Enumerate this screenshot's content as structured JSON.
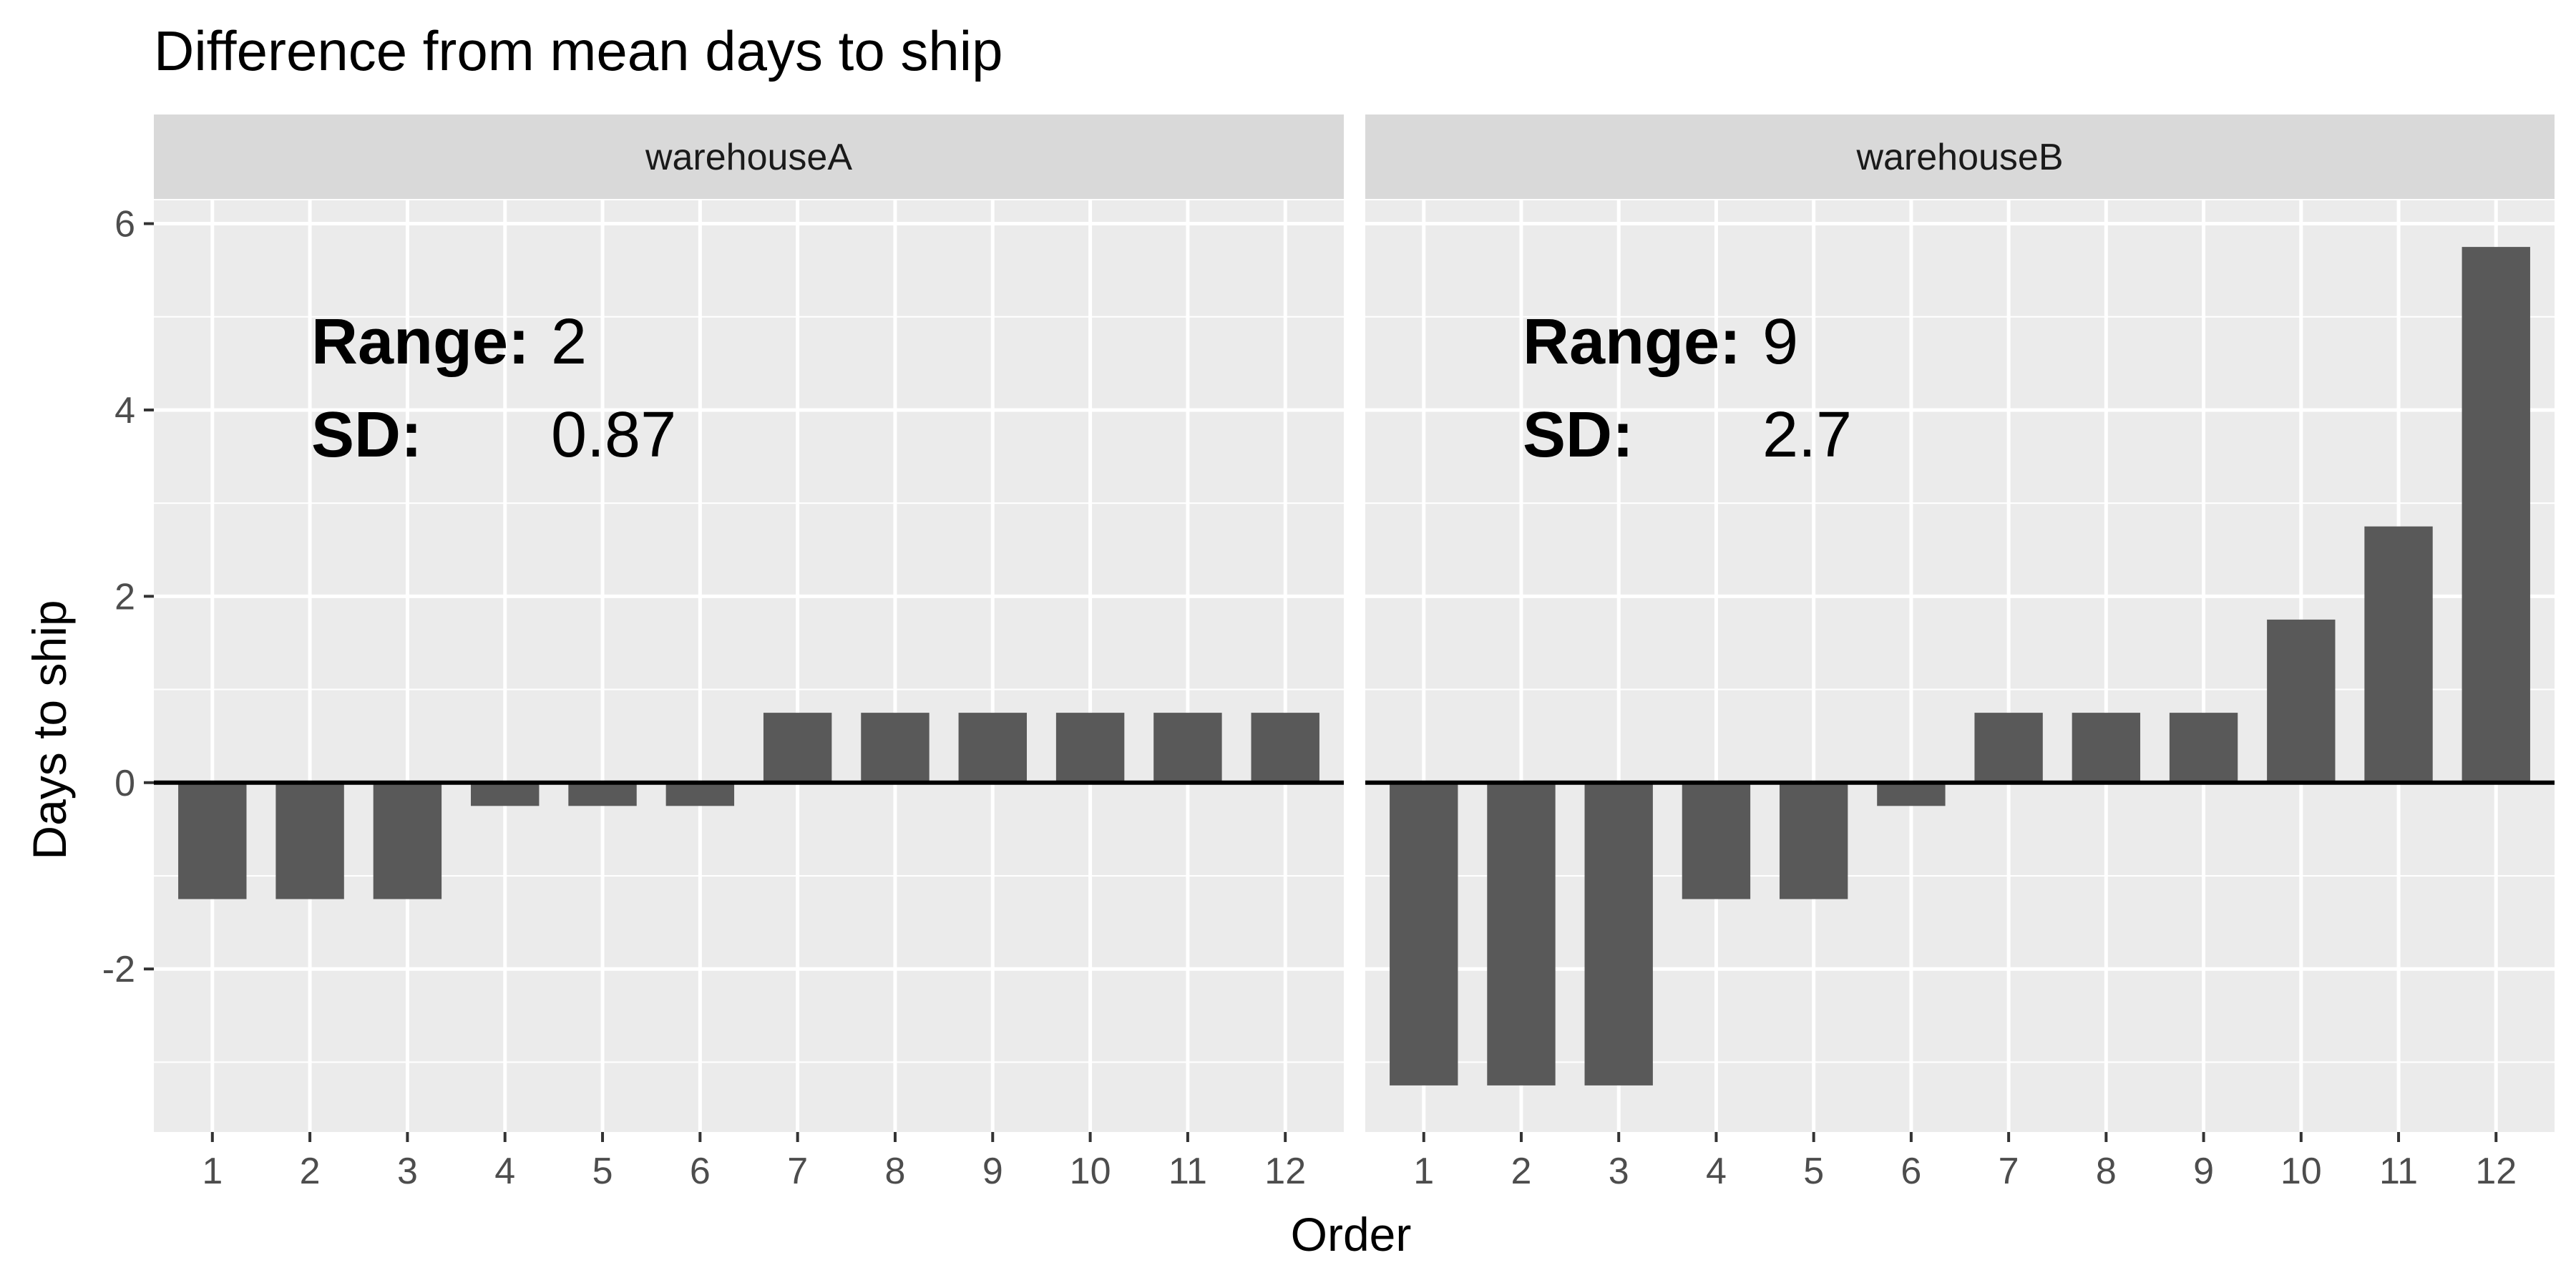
{
  "chart_data": {
    "type": "bar",
    "title": "Difference from mean days to ship",
    "xlabel": "Order",
    "ylabel": "Days to ship",
    "ylim": [
      -3.75,
      6.25
    ],
    "yticks": [
      -2,
      0,
      2,
      4,
      6
    ],
    "ytick_labels": [
      "-2",
      "0",
      "2",
      "4",
      "6"
    ],
    "categories": [
      "1",
      "2",
      "3",
      "4",
      "5",
      "6",
      "7",
      "8",
      "9",
      "10",
      "11",
      "12"
    ],
    "grid": true,
    "reference_line": 0,
    "bar_color": "#595959",
    "panel_background": "#ebebeb",
    "strip_background": "#d9d9d9",
    "panels": [
      {
        "name": "warehouseA",
        "values": [
          -1.25,
          -1.25,
          -1.25,
          -0.25,
          -0.25,
          -0.25,
          0.75,
          0.75,
          0.75,
          0.75,
          0.75,
          0.75
        ],
        "stats": {
          "range_label": "Range:",
          "range_value": "2",
          "sd_label": "SD:",
          "sd_value": "0.87"
        }
      },
      {
        "name": "warehouseB",
        "values": [
          -3.25,
          -3.25,
          -3.25,
          -1.25,
          -1.25,
          -0.25,
          0.75,
          0.75,
          0.75,
          1.75,
          2.75,
          5.75
        ],
        "stats": {
          "range_label": "Range:",
          "range_value": "9",
          "sd_label": "SD:",
          "sd_value": "2.7"
        }
      }
    ]
  }
}
